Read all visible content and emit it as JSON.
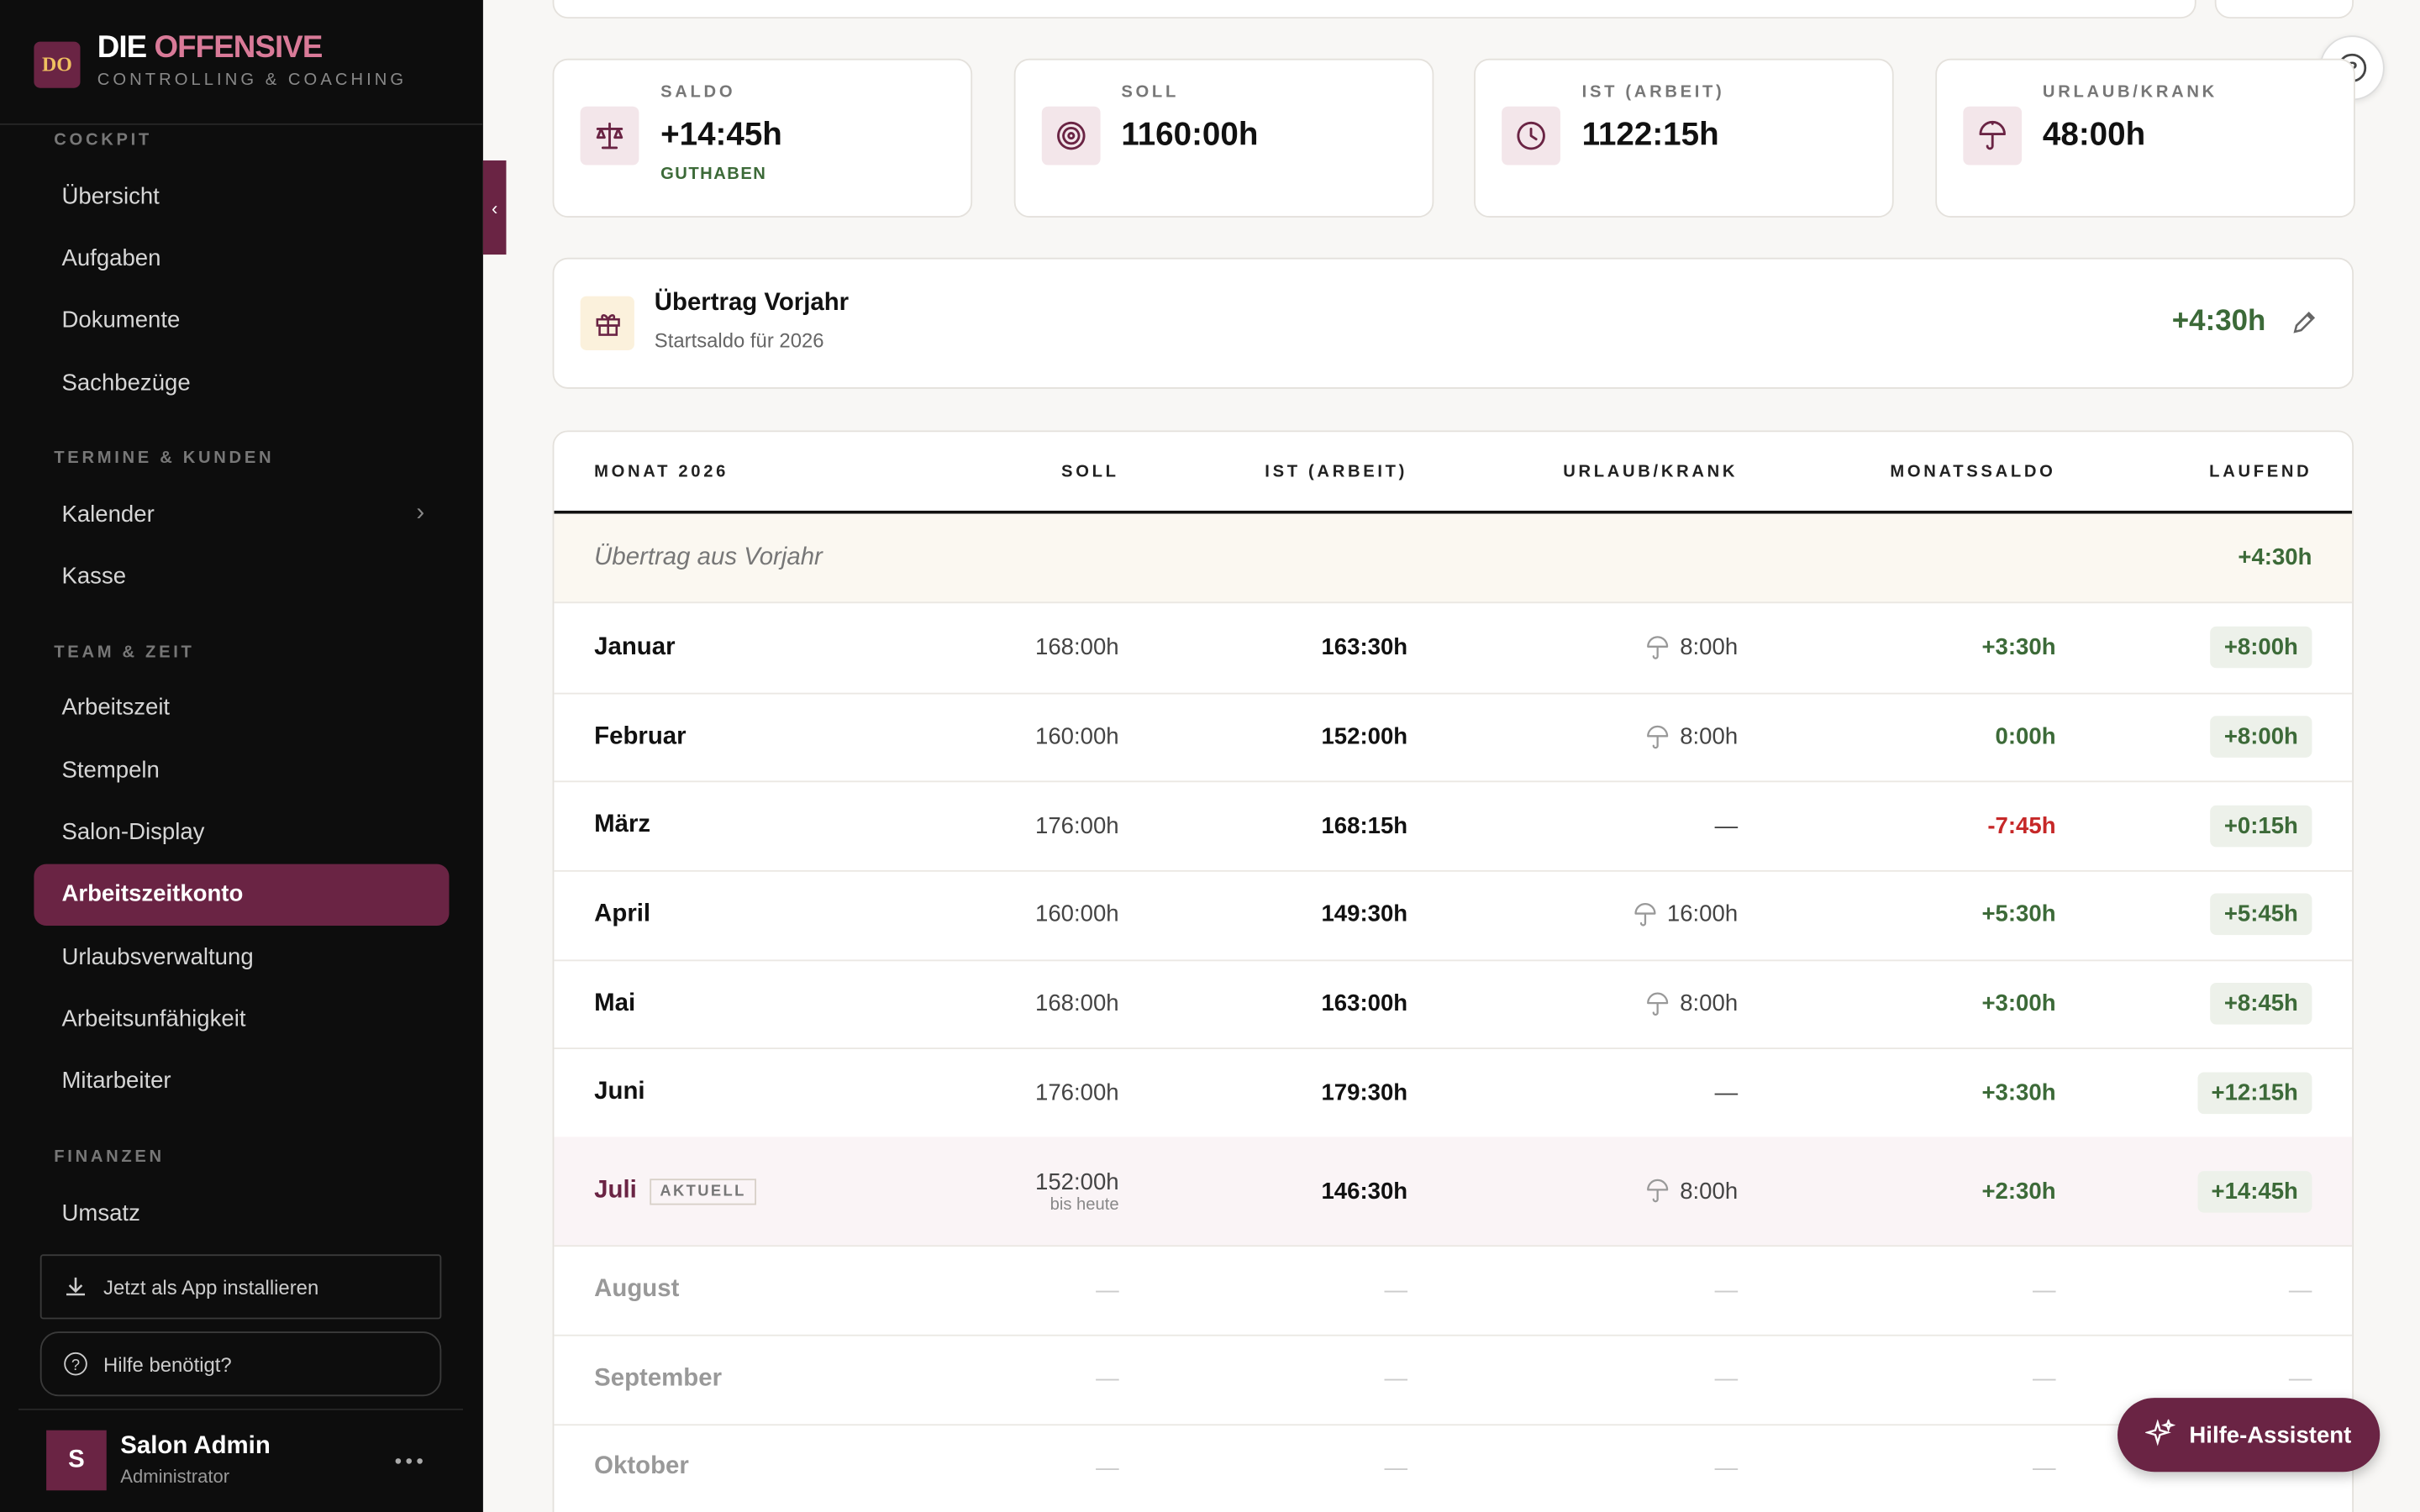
{
  "sidebar": {
    "logo": "DO",
    "brand_1": "DIE",
    "brand_2": "OFFENSIVE",
    "tagline": "CONTROLLING & COACHING",
    "sections": [
      {
        "title": "COCKPIT",
        "items": [
          {
            "label": "Übersicht"
          },
          {
            "label": "Aufgaben"
          },
          {
            "label": "Dokumente"
          },
          {
            "label": "Sachbezüge"
          }
        ]
      },
      {
        "title": "TERMINE & KUNDEN",
        "items": [
          {
            "label": "Kalender",
            "submenu": true
          },
          {
            "label": "Kasse"
          }
        ]
      },
      {
        "title": "TEAM & ZEIT",
        "items": [
          {
            "label": "Arbeitszeit"
          },
          {
            "label": "Stempeln"
          },
          {
            "label": "Salon-Display"
          },
          {
            "label": "Arbeitszeitkonto",
            "active": true
          },
          {
            "label": "Urlaubsverwaltung"
          },
          {
            "label": "Arbeitsunfähigkeit"
          },
          {
            "label": "Mitarbeiter"
          }
        ]
      },
      {
        "title": "FINANZEN",
        "items": [
          {
            "label": "Umsatz"
          }
        ]
      }
    ],
    "install": "Jetzt als App installieren",
    "help": "Hilfe benötigt?",
    "user": {
      "initial": "S",
      "name": "Salon Admin",
      "role": "Administrator"
    }
  },
  "stats": [
    {
      "label": "SALDO",
      "value": "+14:45h",
      "note": "GUTHABEN"
    },
    {
      "label": "SOLL",
      "value": "1160:00h"
    },
    {
      "label": "IST (ARBEIT)",
      "value": "1122:15h"
    },
    {
      "label": "URLAUB/KRANK",
      "value": "48:00h"
    }
  ],
  "carryover": {
    "title": "Übertrag Vorjahr",
    "subtitle": "Startsaldo für 2026",
    "value": "+4:30h"
  },
  "table": {
    "headers": [
      "MONAT 2026",
      "SOLL",
      "IST (ARBEIT)",
      "URLAUB/KRANK",
      "MONATSSALDO",
      "LAUFEND"
    ],
    "carry_row": {
      "label": "Übertrag aus Vorjahr",
      "value": "+4:30h"
    },
    "rows": [
      [
        "Januar",
        "168:00h",
        "163:30h",
        "8:00h",
        "+3:30h",
        "+8:00h"
      ],
      [
        "Februar",
        "160:00h",
        "152:00h",
        "8:00h",
        "0:00h",
        "+8:00h"
      ],
      [
        "März",
        "176:00h",
        "168:15h",
        "—",
        "-7:45h",
        "+0:15h"
      ],
      [
        "April",
        "160:00h",
        "149:30h",
        "16:00h",
        "+5:30h",
        "+5:45h"
      ],
      [
        "Mai",
        "168:00h",
        "163:00h",
        "8:00h",
        "+3:00h",
        "+8:45h"
      ],
      [
        "Juni",
        "176:00h",
        "179:30h",
        "—",
        "+3:30h",
        "+12:15h"
      ],
      [
        "Juli",
        "152:00h",
        "146:30h",
        "8:00h",
        "+2:30h",
        "+14:45h"
      ],
      [
        "August",
        "—",
        "—",
        "—",
        "—",
        "—"
      ],
      [
        "September",
        "—",
        "—",
        "—",
        "—",
        "—"
      ],
      [
        "Oktober",
        "—",
        "—",
        "—",
        "—",
        "—"
      ]
    ],
    "current": {
      "row": 6,
      "badge": "AKTUELL",
      "note": "bis heute"
    }
  },
  "assistant": "Hilfe-Assistent"
}
